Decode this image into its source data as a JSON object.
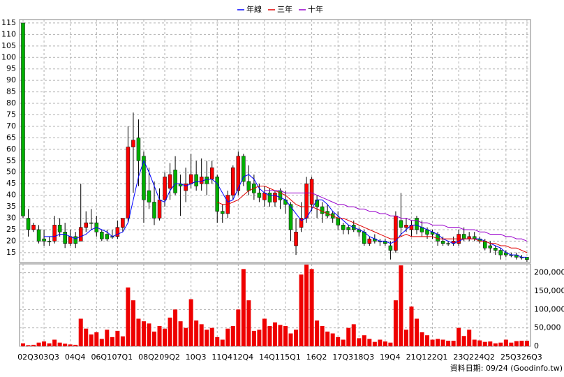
{
  "chart_data": {
    "type": "candlestick",
    "categories": [
      "02Q3",
      null,
      null,
      null,
      "03Q3",
      null,
      null,
      null,
      null,
      "04Q4",
      null,
      null,
      null,
      null,
      "06Q1",
      null,
      null,
      null,
      "07Q1",
      null,
      null,
      null,
      null,
      "08Q2",
      null,
      null,
      null,
      "09Q2",
      null,
      null,
      null,
      null,
      "10Q3",
      null,
      null,
      null,
      null,
      "11Q4",
      null,
      null,
      null,
      "12Q4",
      null,
      null,
      null,
      null,
      "14Q1",
      null,
      null,
      null,
      "15Q1",
      null,
      null,
      null,
      null,
      "16Q2",
      null,
      null,
      null,
      null,
      "17Q3",
      null,
      null,
      null,
      "18Q3",
      null,
      null,
      null,
      null,
      "19Q4",
      null,
      null,
      null,
      null,
      "21Q1",
      null,
      null,
      null,
      "22Q1",
      null,
      null,
      null,
      null,
      "23Q2",
      null,
      null,
      null,
      "24Q2",
      null,
      null,
      null,
      null,
      "25Q3",
      null,
      null,
      null,
      "26Q3"
    ],
    "open": [
      115,
      30,
      25,
      25,
      21,
      20,
      20,
      27,
      24,
      19,
      22,
      20,
      26,
      28,
      28,
      24,
      23,
      22,
      22,
      26,
      30,
      61,
      65,
      57,
      42,
      37,
      30,
      38,
      43,
      51,
      45,
      42,
      45,
      49,
      45,
      48,
      47,
      48,
      33,
      32,
      40,
      42,
      57,
      46,
      45,
      41,
      38,
      41,
      37,
      42,
      38,
      36,
      18,
      26,
      30,
      36,
      38,
      35,
      33,
      32,
      30,
      27,
      26,
      27,
      25,
      24,
      19,
      21,
      20,
      20,
      18,
      16,
      29,
      26,
      25,
      30,
      26,
      25,
      24,
      23,
      20,
      19,
      19,
      19,
      23,
      21,
      22,
      21,
      20,
      18,
      17,
      16,
      15,
      14,
      14,
      13,
      13
    ],
    "high": [
      115,
      34,
      28,
      27,
      25,
      22,
      31,
      30,
      28,
      25,
      24,
      45,
      33,
      34,
      31,
      25,
      25,
      25,
      29,
      30,
      70,
      76,
      73,
      59,
      52,
      46,
      43,
      50,
      54,
      57,
      49,
      52,
      58,
      55,
      56,
      55,
      55,
      49,
      36,
      42,
      53,
      59,
      58,
      53,
      49,
      45,
      44,
      43,
      42,
      43,
      42,
      37,
      30,
      37,
      48,
      48,
      40,
      37,
      36,
      33,
      33,
      28,
      27,
      29,
      26,
      25,
      22,
      23,
      21,
      21,
      20,
      33,
      41,
      30,
      29,
      31,
      29,
      26,
      25,
      24,
      22,
      20,
      22,
      25,
      26,
      24,
      24,
      22,
      21,
      20,
      18,
      17,
      16,
      15,
      15,
      14,
      13
    ],
    "low": [
      30,
      22,
      24,
      19,
      18,
      18,
      19,
      22,
      17,
      18,
      17,
      20,
      24,
      25,
      22,
      20,
      20,
      21,
      21,
      24,
      28,
      41,
      44,
      28,
      34,
      27,
      29,
      35,
      38,
      40,
      31,
      37,
      43,
      42,
      42,
      40,
      45,
      28,
      28,
      30,
      38,
      40,
      44,
      40,
      38,
      37,
      35,
      35,
      35,
      34,
      32,
      20,
      14,
      24,
      28,
      33,
      30,
      28,
      30,
      28,
      25,
      23,
      23,
      24,
      22,
      18,
      18,
      19,
      18,
      18,
      12,
      15,
      22,
      24,
      22,
      23,
      22,
      21,
      21,
      18,
      18,
      18,
      18,
      18,
      20,
      20,
      20,
      19,
      16,
      15,
      14,
      12,
      13,
      13,
      12,
      12,
      11
    ],
    "close": [
      31,
      25,
      27,
      20,
      20,
      20,
      27,
      24,
      19,
      22,
      19,
      26,
      28,
      28,
      24,
      21,
      21,
      22,
      26,
      30,
      61,
      64,
      55,
      38,
      37,
      30,
      38,
      48,
      49,
      41,
      44,
      45,
      49,
      44,
      48,
      45,
      52,
      33,
      32,
      40,
      52,
      57,
      46,
      42,
      41,
      39,
      41,
      37,
      41,
      38,
      36,
      25,
      24,
      30,
      45,
      47,
      35,
      32,
      31,
      30,
      27,
      25,
      25,
      25,
      24,
      19,
      21,
      20,
      20,
      19,
      16,
      31,
      26,
      27,
      27,
      25,
      24,
      23,
      23,
      20,
      19,
      19,
      20,
      23,
      21,
      22,
      21,
      20,
      17,
      17,
      16,
      14,
      14,
      14,
      13,
      13,
      12
    ],
    "up_color": "#ff0000",
    "down_color": "#00b000",
    "ylim": [
      10.7,
      116.5
    ],
    "yticks": [
      15,
      20,
      25,
      30,
      35,
      40,
      45,
      50,
      55,
      60,
      65,
      70,
      75,
      80,
      85,
      90,
      95,
      100,
      105,
      110,
      115
    ],
    "grid": true,
    "legend": "top",
    "series": [
      {
        "name": "年線",
        "color": "#0000ff",
        "values": [
          null,
          null,
          null,
          null,
          22,
          22,
          22,
          23,
          23,
          22,
          21,
          22,
          23,
          25,
          26,
          25,
          24,
          22,
          23,
          24,
          28,
          38,
          48,
          55,
          50,
          44,
          38,
          37,
          42,
          45,
          45,
          44,
          45,
          46,
          46,
          47,
          47,
          45,
          41,
          37,
          38,
          43,
          48,
          49,
          47,
          43,
          41,
          40,
          40,
          39,
          38,
          35,
          32,
          29,
          30,
          34,
          38,
          38,
          36,
          33,
          31,
          29,
          27,
          26,
          25,
          24,
          22,
          21,
          20,
          20,
          19,
          20,
          23,
          25,
          27,
          27,
          26,
          25,
          24,
          23,
          21,
          20,
          19,
          20,
          21,
          21,
          21,
          21,
          20,
          19,
          18,
          17,
          15,
          14,
          14,
          13,
          13
        ]
      },
      {
        "name": "三年",
        "color": "#e00000",
        "values": [
          null,
          null,
          null,
          null,
          null,
          null,
          null,
          null,
          null,
          null,
          null,
          null,
          null,
          null,
          null,
          null,
          null,
          null,
          null,
          null,
          null,
          null,
          null,
          null,
          null,
          null,
          null,
          null,
          null,
          null,
          null,
          null,
          null,
          null,
          null,
          null,
          null,
          37,
          36,
          36,
          37,
          38,
          40,
          42,
          43,
          44,
          44,
          43,
          42,
          41,
          40,
          38,
          36,
          35,
          35,
          35,
          34,
          33,
          32,
          31,
          30,
          30,
          29,
          28,
          27,
          26,
          25,
          24,
          23,
          22,
          21,
          21,
          22,
          23,
          22,
          22,
          22,
          22,
          22,
          21,
          21,
          21,
          21,
          21,
          21,
          21,
          21,
          20,
          20,
          19,
          19,
          18,
          18,
          17,
          17,
          16,
          15
        ]
      },
      {
        "name": "十年",
        "color": "#9900cc",
        "values": [
          null,
          null,
          null,
          null,
          null,
          null,
          null,
          null,
          null,
          null,
          null,
          null,
          null,
          null,
          null,
          null,
          null,
          null,
          null,
          null,
          null,
          null,
          null,
          null,
          null,
          null,
          null,
          null,
          null,
          null,
          null,
          null,
          null,
          null,
          null,
          null,
          null,
          null,
          null,
          null,
          null,
          null,
          null,
          null,
          null,
          null,
          42,
          42,
          42,
          42,
          41,
          41,
          41,
          41,
          41,
          41,
          40,
          39,
          38,
          37,
          36,
          36,
          35,
          35,
          34,
          34,
          33,
          33,
          32,
          32,
          31,
          31,
          30,
          30,
          29,
          29,
          28,
          28,
          27,
          27,
          27,
          26,
          26,
          26,
          25,
          25,
          25,
          24,
          24,
          23,
          23,
          23,
          22,
          22,
          21,
          21,
          20
        ]
      }
    ],
    "volume": {
      "color": "#ee0000",
      "values": [
        8000,
        3000,
        4000,
        10000,
        13000,
        8000,
        18000,
        10000,
        7000,
        5000,
        4000,
        75000,
        48000,
        32000,
        38000,
        20000,
        45000,
        25000,
        42000,
        27000,
        160000,
        125000,
        75000,
        68000,
        62000,
        40000,
        55000,
        48000,
        78000,
        100000,
        68000,
        50000,
        128000,
        70000,
        60000,
        45000,
        50000,
        25000,
        18000,
        48000,
        55000,
        100000,
        210000,
        125000,
        42000,
        45000,
        75000,
        55000,
        65000,
        58000,
        55000,
        35000,
        45000,
        195000,
        222000,
        210000,
        70000,
        55000,
        40000,
        35000,
        25000,
        18000,
        50000,
        60000,
        22000,
        30000,
        20000,
        12000,
        18000,
        13000,
        10000,
        125000,
        220000,
        45000,
        108000,
        75000,
        38000,
        30000,
        18000,
        20000,
        18000,
        15000,
        15000,
        50000,
        28000,
        45000,
        18000,
        16000,
        12000,
        13000,
        8000,
        10000,
        18000,
        10000,
        14000,
        15000,
        15000
      ],
      "ylim": [
        0,
        224000
      ],
      "yticks": [
        0,
        {
          "value": 50000,
          "label": "50,000"
        },
        {
          "value": 100000,
          "label": "100,000"
        },
        {
          "value": 150000,
          "label": "150,000"
        },
        {
          "value": 200000,
          "label": "200,000"
        }
      ]
    },
    "footer": "資料日期: 09/24 (Goodinfo.tw)"
  }
}
